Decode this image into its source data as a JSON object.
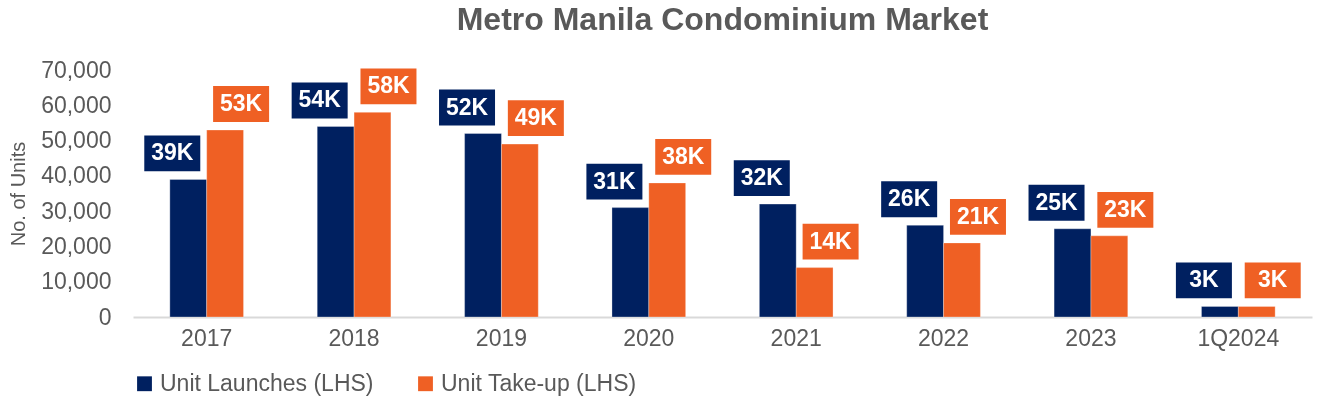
{
  "chart_data": {
    "type": "bar",
    "title": "Metro Manila Condominium Market",
    "ylabel": "No. of Units",
    "categories": [
      "2017",
      "2018",
      "2019",
      "2020",
      "2021",
      "2022",
      "2023",
      "1Q2024"
    ],
    "series": [
      {
        "name": "Unit Launches (LHS)",
        "color": "#002060",
        "values": [
          39000,
          54000,
          52000,
          31000,
          32000,
          26000,
          25000,
          3000
        ],
        "value_labels": [
          "39K",
          "54K",
          "52K",
          "31K",
          "32K",
          "26K",
          "25K",
          "3K"
        ]
      },
      {
        "name": "Unit Take-up (LHS)",
        "color": "#ef6024",
        "values": [
          53000,
          58000,
          49000,
          38000,
          14000,
          21000,
          23000,
          3000
        ],
        "value_labels": [
          "53K",
          "58K",
          "49K",
          "38K",
          "14K",
          "21K",
          "23K",
          "3K"
        ]
      }
    ],
    "ylim": [
      0,
      70000
    ],
    "yticks": [
      0,
      {
        "value": 10000,
        "label": "10,000"
      },
      {
        "value": 20000,
        "label": "20,000"
      },
      {
        "value": 30000,
        "label": "30,000"
      },
      {
        "value": 40000,
        "label": "40,000"
      },
      {
        "value": 50000,
        "label": "50,000"
      },
      {
        "value": 60000,
        "label": "60,000"
      },
      {
        "value": 70000,
        "label": "70,000"
      }
    ],
    "grid": false,
    "legend": "bottom"
  }
}
